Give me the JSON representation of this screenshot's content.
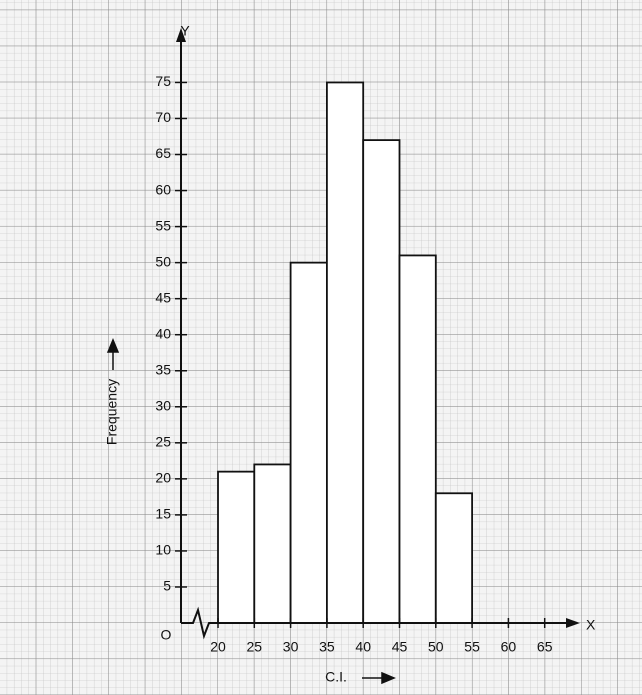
{
  "chart_data": {
    "type": "histogram",
    "bins": [
      20,
      25,
      30,
      35,
      40,
      45,
      50,
      55
    ],
    "values": [
      21,
      22,
      50,
      75,
      67,
      51,
      18
    ],
    "color": "#ffffff",
    "edgecolor": "#111111",
    "xlim": [
      20,
      70
    ],
    "ylim": [
      0,
      82
    ],
    "xticks": [
      20,
      25,
      30,
      35,
      40,
      45,
      50,
      55,
      60,
      65
    ],
    "yticks": [
      5,
      10,
      15,
      20,
      25,
      30,
      35,
      40,
      45,
      50,
      55,
      60,
      65,
      70,
      75
    ],
    "xlabel": "C.I.",
    "ylabel": "Frequency",
    "x_axis_letter": "X",
    "y_axis_letter": "Y",
    "origin_letter": "O"
  }
}
